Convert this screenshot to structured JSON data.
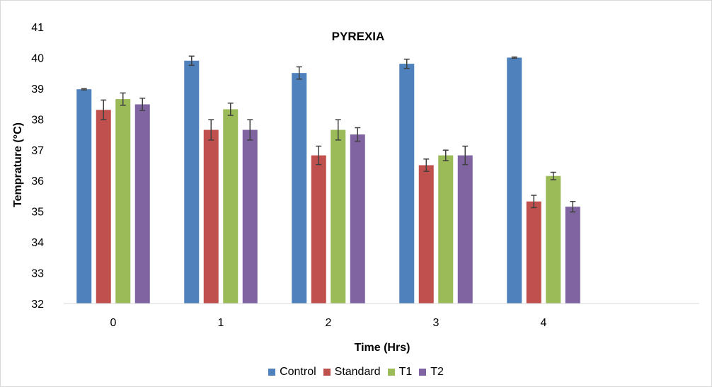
{
  "chart_data": {
    "type": "bar",
    "title": "PYREXIA",
    "xlabel": "Time (Hrs)",
    "ylabel": "Temprature (°C)",
    "categories": [
      "0",
      "1",
      "2",
      "3",
      "4"
    ],
    "ylim": [
      32,
      41
    ],
    "yticks": [
      "32",
      "33",
      "34",
      "35",
      "36",
      "37",
      "38",
      "39",
      "40",
      "41"
    ],
    "grid": false,
    "legend_position": "bottom",
    "series": [
      {
        "name": "Control",
        "color": "#4f81bd",
        "values": [
          38.97,
          39.9,
          39.5,
          39.8,
          40.0
        ],
        "errors": [
          0.02,
          0.15,
          0.2,
          0.15,
          0.02
        ]
      },
      {
        "name": "Standard",
        "color": "#c0504d",
        "values": [
          38.3,
          37.65,
          36.82,
          36.5,
          35.32
        ],
        "errors": [
          0.32,
          0.33,
          0.3,
          0.2,
          0.2
        ]
      },
      {
        "name": "T1",
        "color": "#9bbb59",
        "values": [
          38.65,
          38.32,
          37.65,
          36.82,
          36.15
        ],
        "errors": [
          0.2,
          0.2,
          0.33,
          0.17,
          0.12
        ]
      },
      {
        "name": "T2",
        "color": "#8064a2",
        "values": [
          38.48,
          37.65,
          37.5,
          36.82,
          35.15
        ],
        "errors": [
          0.2,
          0.33,
          0.22,
          0.3,
          0.17
        ]
      }
    ]
  }
}
